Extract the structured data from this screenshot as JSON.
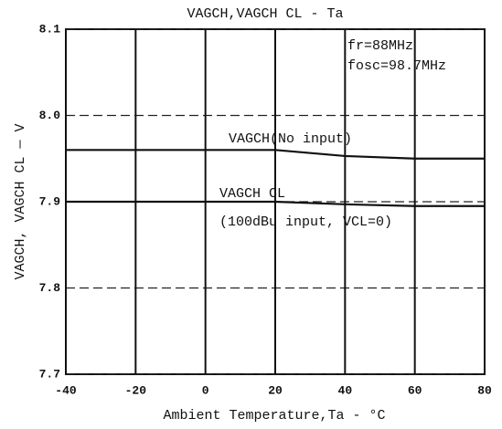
{
  "chart_data": {
    "type": "line",
    "title": "VAGCH,VAGCH CL - Ta",
    "xlabel": "Ambient Temperature,Ta - °C",
    "ylabel": "VAGCH, VAGCH CL — V",
    "annotations": [
      "fr=88MHz",
      "fosc=98.7MHz",
      "(100dBu input, VCL=0)"
    ],
    "x": [
      -40,
      -20,
      0,
      20,
      40,
      60,
      80
    ],
    "series": [
      {
        "name": "VAGCH(No input)",
        "color": "#111111",
        "values": [
          7.96,
          7.96,
          7.96,
          7.96,
          7.953,
          7.95,
          7.95
        ]
      },
      {
        "name": "VAGCH CL",
        "color": "#111111",
        "values": [
          7.9,
          7.9,
          7.9,
          7.9,
          7.897,
          7.895,
          7.895
        ]
      }
    ],
    "xlim": [
      -40,
      80
    ],
    "xticks": [
      -40,
      -20,
      0,
      20,
      40,
      60,
      80
    ],
    "ylim": [
      7.7,
      8.1
    ],
    "yticks": [
      7.7,
      7.8,
      7.9,
      {
        "value": 8,
        "label": "8.0"
      },
      8.1
    ],
    "grid": true
  }
}
